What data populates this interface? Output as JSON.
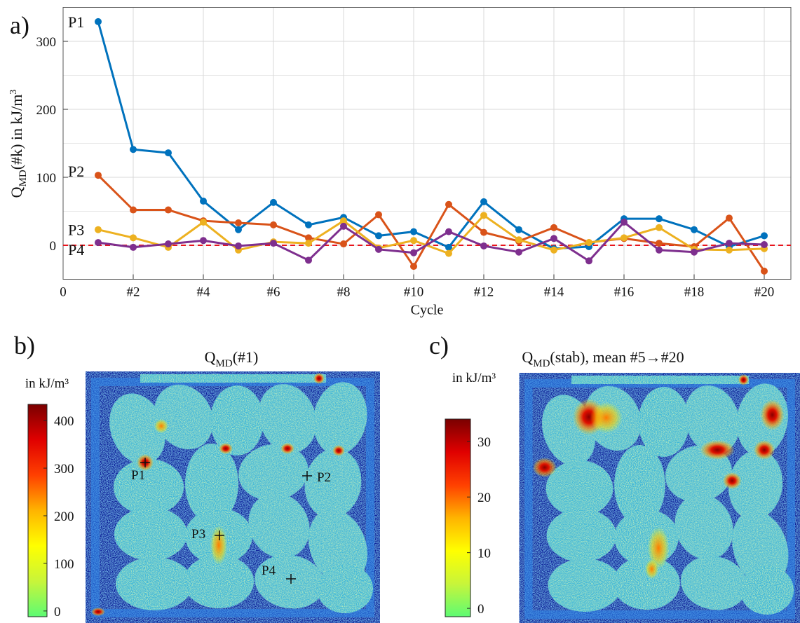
{
  "chart_data": {
    "type": "line",
    "panel_label": "a)",
    "x_label": "Cycle",
    "y_label": {
      "symbol": "Q",
      "subscript": "MD",
      "text": "(#k) in kJ/m",
      "superscript": "3"
    },
    "x": [
      1,
      2,
      3,
      4,
      5,
      6,
      7,
      8,
      9,
      10,
      11,
      12,
      13,
      14,
      15,
      16,
      17,
      18,
      19,
      20
    ],
    "xlim": [
      0,
      20.76
    ],
    "xticks": [
      0,
      {
        "value": 2,
        "label": "#2"
      },
      {
        "value": 4,
        "label": "#4"
      },
      {
        "value": 6,
        "label": "#6"
      },
      {
        "value": 8,
        "label": "#8"
      },
      {
        "value": 10,
        "label": "#10"
      },
      {
        "value": 12,
        "label": "#12"
      },
      {
        "value": 14,
        "label": "#14"
      },
      {
        "value": 16,
        "label": "#16"
      },
      {
        "value": 18,
        "label": "#18"
      },
      {
        "value": 20,
        "label": "#20"
      }
    ],
    "ylim": [
      -50,
      350
    ],
    "yticks": [
      0,
      100,
      200,
      300
    ],
    "minor_yticks": [
      50,
      150,
      250
    ],
    "grid": true,
    "reference_line": {
      "value": 0,
      "color": "#e8141c"
    },
    "series": [
      {
        "name": "P1",
        "color": "#0072bd",
        "values": [
          329,
          141,
          136,
          65,
          23,
          63,
          30,
          41,
          14,
          20,
          -3,
          64,
          23,
          -5,
          -2,
          39,
          39,
          23,
          -2,
          14
        ]
      },
      {
        "name": "P2",
        "color": "#d95319",
        "values": [
          103,
          52,
          52,
          36,
          33,
          30,
          11,
          2,
          45,
          -31,
          60,
          19,
          6,
          26,
          4,
          10,
          3,
          -2,
          40,
          -38
        ]
      },
      {
        "name": "P3",
        "color": "#edb120",
        "values": [
          23,
          11,
          -3,
          34,
          -7,
          5,
          3,
          36,
          -4,
          7,
          -12,
          44,
          8,
          -7,
          4,
          11,
          26,
          -6,
          -7,
          -5
        ]
      },
      {
        "name": "P4",
        "color": "#7e2f8e",
        "values": [
          4,
          -3,
          2,
          7,
          -1,
          3,
          -22,
          28,
          -6,
          -11,
          20,
          -1,
          -10,
          10,
          -23,
          34,
          -7,
          -10,
          3,
          1
        ]
      }
    ]
  },
  "colormap": [
    "#5dfb73",
    "#c8f53a",
    "#ffff00",
    "#ffb400",
    "#ff4000",
    "#e00000",
    "#7a0000"
  ],
  "panels": [
    {
      "label": "b)",
      "title": {
        "symbol": "Q",
        "subscript": "MD",
        "text": "(#1)"
      },
      "colorbar": {
        "label": "in kJ/m³",
        "lim": [
          -12,
          434
        ],
        "ticks": [
          0,
          100,
          200,
          300,
          400
        ]
      },
      "markers": [
        {
          "label": "P1"
        },
        {
          "label": "P2"
        },
        {
          "label": "P3"
        },
        {
          "label": "P4"
        }
      ]
    },
    {
      "label": "c)",
      "title": {
        "symbol": "Q",
        "subscript": "MD",
        "text": "(stab), mean #5→#20"
      },
      "colorbar": {
        "label": "in kJ/m³",
        "lim": [
          -1.5,
          34
        ],
        "ticks": [
          0,
          10,
          20,
          30
        ]
      },
      "markers": []
    }
  ]
}
